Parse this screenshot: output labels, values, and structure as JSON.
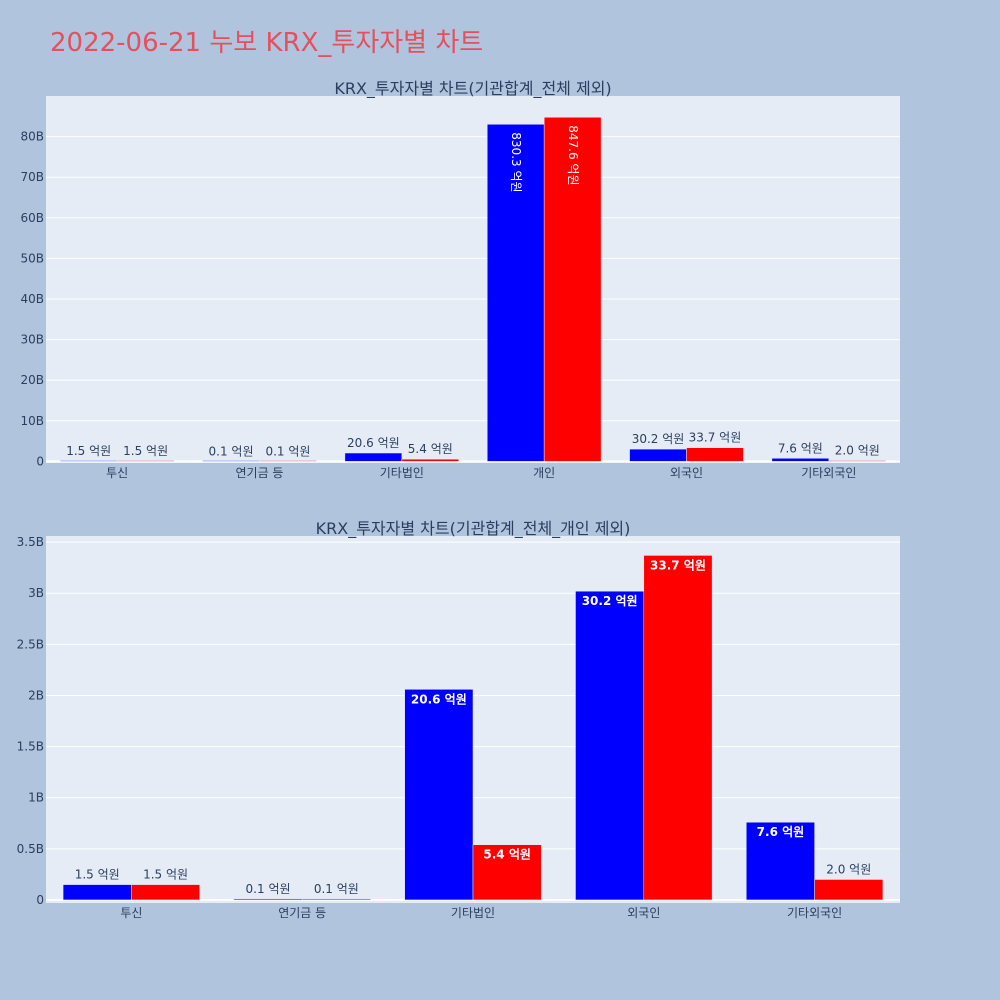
{
  "page_title": "2022-06-21 누보 KRX_투자자별 차트",
  "colors": {
    "buy": "#0000ff",
    "sell": "#ff0000",
    "plot_bg": "#e5ecf6",
    "page_bg": "#b0c4de",
    "title": "#e5505f"
  },
  "chart_data": [
    {
      "type": "bar",
      "title": "KRX_투자자별 차트(기관합계_전체 제외)",
      "categories": [
        "투신",
        "연기금 등",
        "기타법인",
        "개인",
        "외국인",
        "기타외국인"
      ],
      "series": [
        {
          "values": [
            0.15,
            0.01,
            2.06,
            83.03,
            3.02,
            0.76
          ],
          "labels": [
            "1.5 억원",
            "0.1 억원",
            "20.6 억원",
            "830.3 억원",
            "30.2 억원",
            "7.6 억원"
          ]
        },
        {
          "values": [
            0.15,
            0.01,
            0.54,
            84.76,
            3.37,
            0.2
          ],
          "labels": [
            "1.5 억원",
            "0.1 억원",
            "5.4 억원",
            "847.6 억원",
            "33.7 억원",
            "2.0 억원"
          ]
        }
      ],
      "yticks": [
        0,
        10,
        20,
        30,
        40,
        50,
        60,
        70,
        80
      ],
      "ytick_labels": [
        "0",
        "10B",
        "20B",
        "30B",
        "40B",
        "50B",
        "60B",
        "70B",
        "80B"
      ],
      "ylim": [
        -0.4,
        90
      ],
      "unit": "B"
    },
    {
      "type": "bar",
      "title": "KRX_투자자별 차트(기관합계_전체_개인 제외)",
      "categories": [
        "투신",
        "연기금 등",
        "기타법인",
        "외국인",
        "기타외국인"
      ],
      "series": [
        {
          "values": [
            0.15,
            0.01,
            2.06,
            3.02,
            0.76
          ],
          "labels": [
            "1.5 억원",
            "0.1 억원",
            "20.6 억원",
            "30.2 억원",
            "7.6 억원"
          ]
        },
        {
          "values": [
            0.15,
            0.01,
            0.54,
            3.37,
            0.2
          ],
          "labels": [
            "1.5 억원",
            "0.1 억원",
            "5.4 억원",
            "33.7 억원",
            "2.0 억원"
          ]
        }
      ],
      "yticks": [
        0,
        0.5,
        1,
        1.5,
        2,
        2.5,
        3,
        3.5
      ],
      "ytick_labels": [
        "0",
        "0.5B",
        "1B",
        "1.5B",
        "2B",
        "2.5B",
        "3B",
        "3.5B"
      ],
      "ylim": [
        -0.03,
        3.56
      ],
      "unit": "B"
    }
  ]
}
